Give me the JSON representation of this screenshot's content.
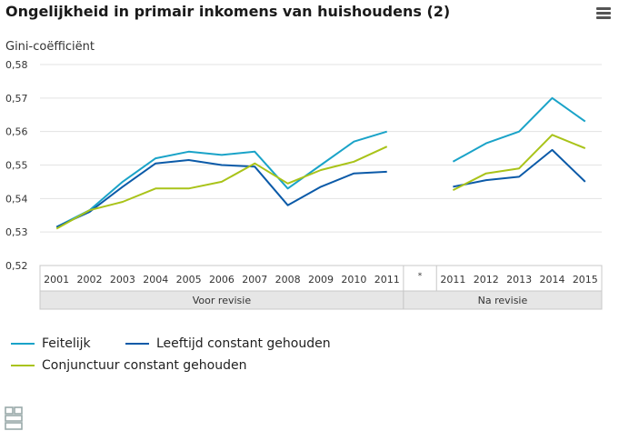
{
  "title": "Ongelijkheid in primair inkomens van huishoudens (2)",
  "menu_icon": "hamburger-menu-icon",
  "logo_icon": "cbs-logo-icon",
  "chart_data": {
    "type": "line",
    "title": "Ongelijkheid in primair inkomens van huishoudens (2)",
    "ylabel": "Gini-coëfficiënt",
    "ylim": [
      0.52,
      0.58
    ],
    "yticks": [
      "0,52",
      "0,53",
      "0,54",
      "0,55",
      "0,56",
      "0,57",
      "0,58"
    ],
    "categories": [
      "2001",
      "2002",
      "2003",
      "2004",
      "2005",
      "2006",
      "2007",
      "2008",
      "2009",
      "2010",
      "2011",
      "*",
      "2011",
      "2012",
      "2013",
      "2014",
      "2015"
    ],
    "groups": [
      {
        "label": "Voor revisie",
        "from": 0,
        "to": 10
      },
      {
        "label": "Na revisie",
        "from": 11,
        "to": 16
      }
    ],
    "legend_placement": "bottom",
    "series": [
      {
        "name": "Feitelijk",
        "color": "#1aa3c8",
        "values": [
          0.5315,
          0.5365,
          0.545,
          0.552,
          0.554,
          0.553,
          0.554,
          0.543,
          0.55,
          0.557,
          0.56,
          null,
          0.551,
          0.5565,
          0.56,
          0.57,
          0.563
        ]
      },
      {
        "name": "Leeftijd constant gehouden",
        "color": "#0b5aa8",
        "values": [
          0.5315,
          0.536,
          0.5435,
          0.5505,
          0.5515,
          0.55,
          0.5495,
          0.538,
          0.5435,
          0.5475,
          0.548,
          null,
          0.5435,
          0.5455,
          0.5465,
          0.5545,
          0.545
        ]
      },
      {
        "name": "Conjunctuur constant gehouden",
        "color": "#a9c319",
        "values": [
          0.531,
          0.5365,
          0.539,
          0.543,
          0.543,
          0.545,
          0.5505,
          0.5445,
          0.5485,
          0.551,
          0.5555,
          null,
          0.5425,
          0.5475,
          0.549,
          0.559,
          0.555
        ]
      }
    ]
  },
  "legend": [
    {
      "label": "Feitelijk",
      "color": "#1aa3c8"
    },
    {
      "label": "Leeftijd constant gehouden",
      "color": "#0b5aa8"
    },
    {
      "label": "Conjunctuur constant gehouden",
      "color": "#a9c319"
    }
  ]
}
